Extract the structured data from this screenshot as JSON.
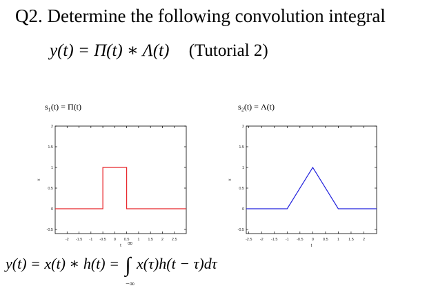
{
  "heading": {
    "question": "Q2. Determine the following convolution integral",
    "equation": "y(t) = Π(t) ∗ Λ(t)",
    "tutorial": "(Tutorial 2)"
  },
  "formula": {
    "lhs": "y(t) = x(t) ∗ h(t) = ",
    "upper_limit": "∞",
    "lower_limit": "−∞",
    "integrand": "x(τ)h(t − τ)dτ"
  },
  "chart_data": [
    {
      "type": "line",
      "title": "s₁(t) = Π(t)",
      "xlabel": "t",
      "ylabel": "x",
      "xlim": [
        -2.5,
        3
      ],
      "ylim": [
        -0.6,
        2
      ],
      "xticks": [
        -2,
        -1.5,
        -1,
        -0.5,
        0,
        0.5,
        1,
        1.5,
        2,
        2.5
      ],
      "yticks": [
        -0.5,
        0,
        0.5,
        1,
        1.5,
        2
      ],
      "color": "#e8262b",
      "series": [
        {
          "x": [
            -2.5,
            -0.5,
            -0.5,
            0.5,
            0.5,
            3
          ],
          "y": [
            0,
            0,
            1,
            1,
            0,
            0
          ]
        }
      ]
    },
    {
      "type": "line",
      "title": "s₂(t) = Λ(t)",
      "xlabel": "t",
      "ylabel": "x",
      "xlim": [
        -2.6,
        2.5
      ],
      "ylim": [
        -0.6,
        2
      ],
      "xticks": [
        -2.5,
        -2,
        -1.5,
        -1,
        -0.5,
        0,
        0.5,
        1,
        1.5,
        2
      ],
      "yticks": [
        -0.5,
        0,
        0.5,
        1,
        1.5,
        2
      ],
      "color": "#2222dd",
      "series": [
        {
          "x": [
            -2.6,
            -1,
            0,
            1,
            2.5
          ],
          "y": [
            0,
            0,
            1,
            0,
            0
          ]
        }
      ]
    }
  ]
}
